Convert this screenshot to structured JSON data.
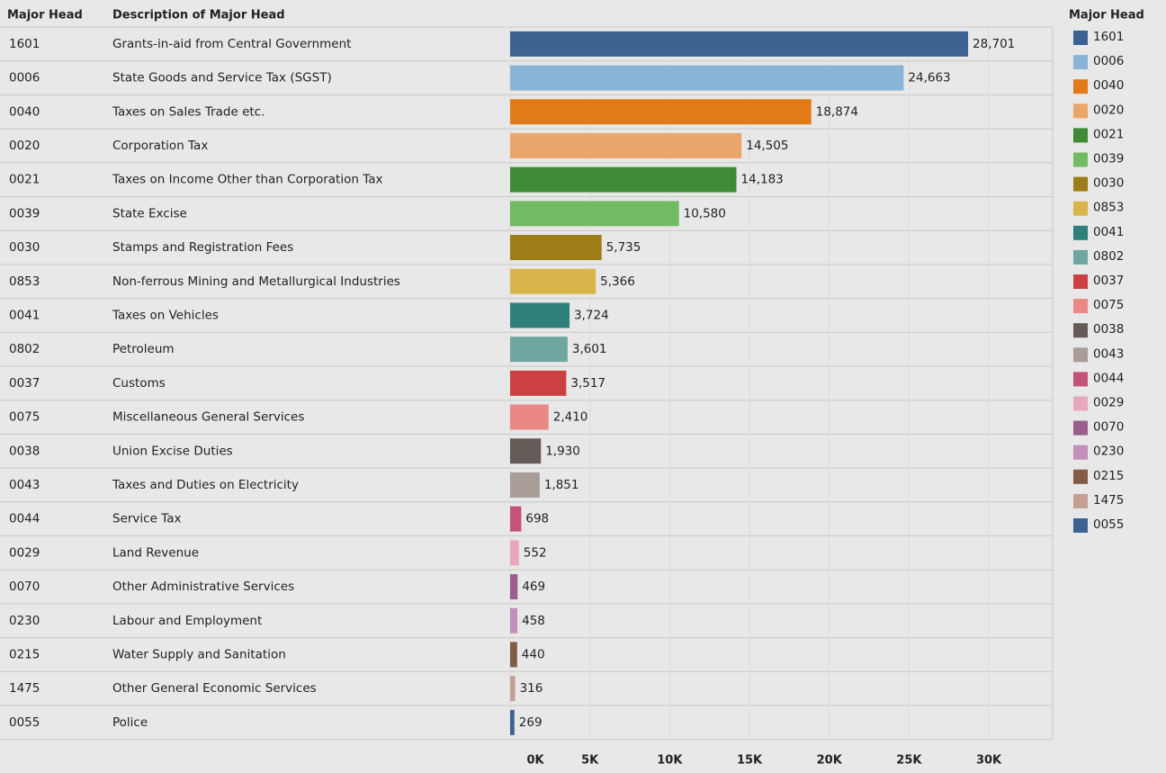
{
  "chart_data": {
    "type": "bar",
    "orientation": "horizontal",
    "column_headers": [
      "Major Head",
      "Description of Major Head"
    ],
    "legend_title": "Major Head",
    "categories": [
      "1601",
      "0006",
      "0040",
      "0020",
      "0021",
      "0039",
      "0030",
      "0853",
      "0041",
      "0802",
      "0037",
      "0075",
      "0038",
      "0043",
      "0044",
      "0029",
      "0070",
      "0230",
      "0215",
      "1475",
      "0055"
    ],
    "descriptions": [
      "Grants-in-aid from Central Government",
      "State Goods and Service Tax (SGST)",
      "Taxes on Sales Trade etc.",
      "Corporation Tax",
      "Taxes on Income Other than Corporation Tax",
      "State Excise",
      "Stamps and Registration Fees",
      "Non-ferrous Mining and Metallurgical Industries",
      "Taxes on Vehicles",
      "Petroleum",
      "Customs",
      "Miscellaneous General Services",
      "Union Excise Duties",
      "Taxes and Duties on Electricity",
      "Service Tax",
      "Land Revenue",
      "Other Administrative Services",
      "Labour and Employment",
      "Water Supply and Sanitation",
      "Other General Economic Services",
      "Police"
    ],
    "values": [
      28701,
      24663,
      18874,
      14505,
      14183,
      10580,
      5735,
      5366,
      3724,
      3601,
      3517,
      2410,
      1930,
      1851,
      698,
      552,
      469,
      458,
      440,
      316,
      269
    ],
    "value_labels": [
      "28,701",
      "24,663",
      "18,874",
      "14,505",
      "14,183",
      "10,580",
      "5,735",
      "5,366",
      "3,724",
      "3,601",
      "3,517",
      "2,410",
      "1,930",
      "1,851",
      "698",
      "552",
      "469",
      "458",
      "440",
      "316",
      "269"
    ],
    "colors": [
      "#3c6291",
      "#8ab4d6",
      "#e07b18",
      "#eaa66a",
      "#3e8a37",
      "#72bb63",
      "#9d7d18",
      "#dab54c",
      "#2f7f7b",
      "#6fa7a0",
      "#cc3f42",
      "#ea8886",
      "#645a56",
      "#a89d97",
      "#c45379",
      "#e9a7be",
      "#9b5e8c",
      "#c18fb8",
      "#835b46",
      "#c4a093",
      "#3c6291"
    ],
    "xlim": [
      0,
      34000
    ],
    "xticks": [
      {
        "value": 0,
        "label": "0K"
      },
      {
        "value": 5000,
        "label": "5K"
      },
      {
        "value": 10000,
        "label": "10K"
      },
      {
        "value": 15000,
        "label": "15K"
      },
      {
        "value": 20000,
        "label": "20K"
      },
      {
        "value": 25000,
        "label": "25K"
      },
      {
        "value": 30000,
        "label": "30K"
      }
    ],
    "grid": true,
    "legend": "right"
  }
}
